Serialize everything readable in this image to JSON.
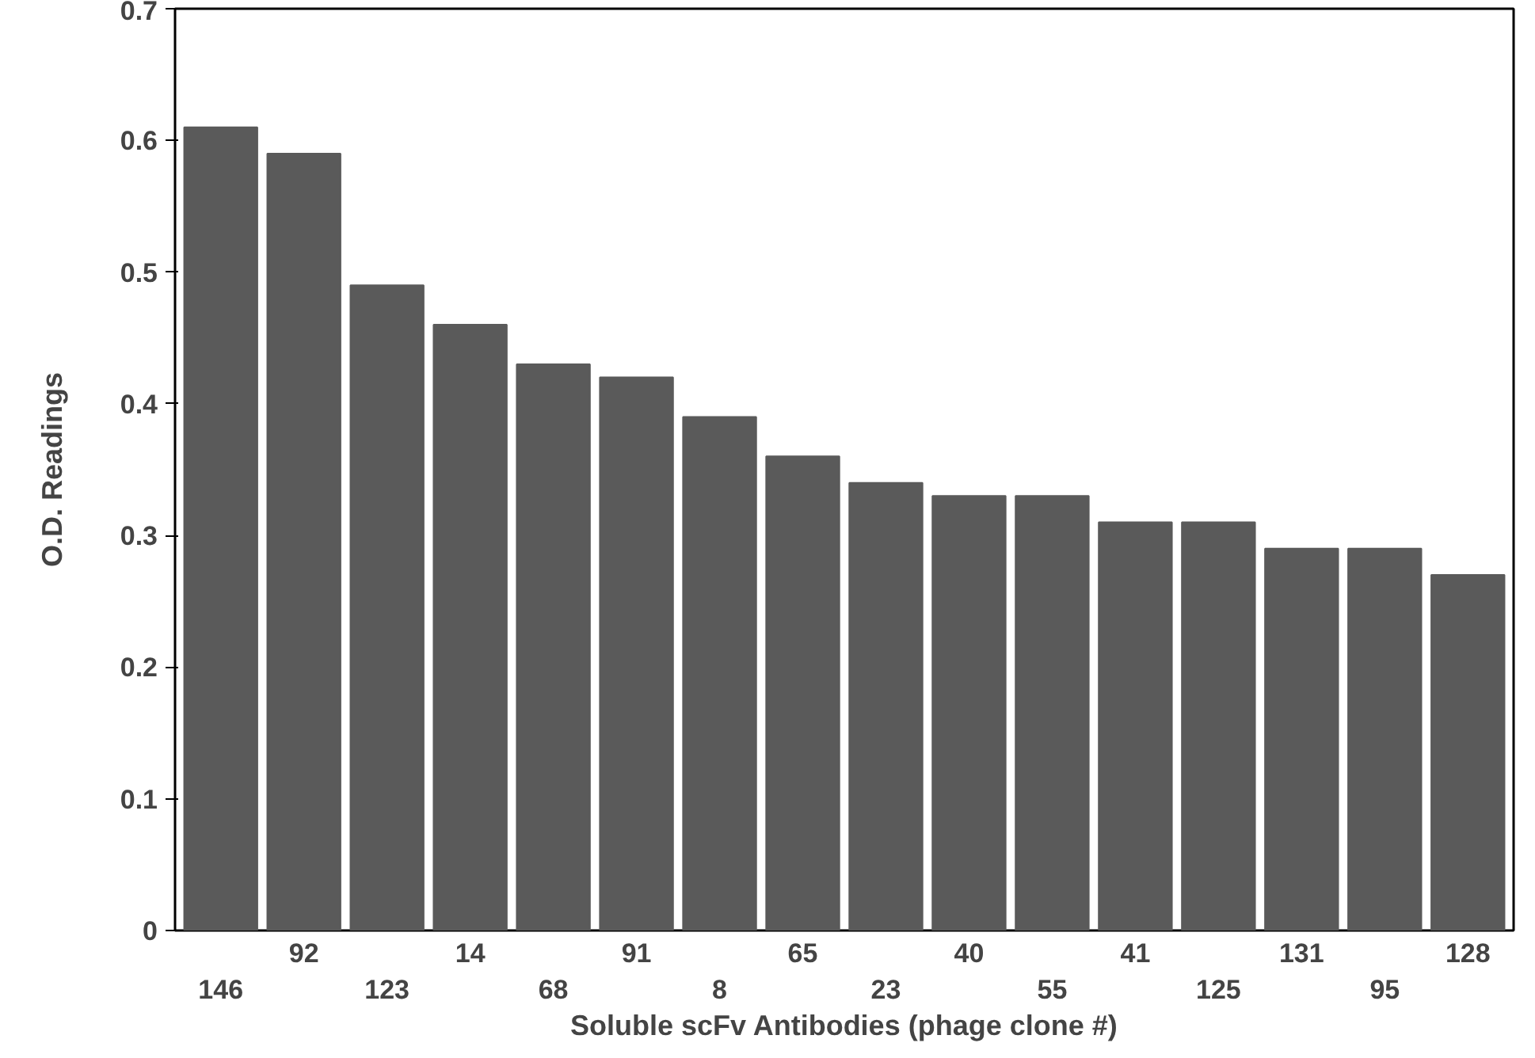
{
  "chart_data": {
    "type": "bar",
    "xlabel": "Soluble scFv Antibodies (phage clone #)",
    "ylabel": "O.D. Readings",
    "categories": [
      "146",
      "92",
      "123",
      "14",
      "68",
      "91",
      "8",
      "65",
      "23",
      "40",
      "55",
      "41",
      "125",
      "131",
      "95",
      "128"
    ],
    "values": [
      0.61,
      0.59,
      0.49,
      0.46,
      0.43,
      0.42,
      0.39,
      0.36,
      0.34,
      0.33,
      0.33,
      0.31,
      0.31,
      0.29,
      0.29,
      0.27
    ],
    "color": "#5a5a5a",
    "ylim": [
      0,
      0.7
    ],
    "yticks": [
      0,
      0.1,
      0.2,
      0.3,
      0.4,
      0.5,
      0.6,
      0.7
    ],
    "grid": false
  }
}
